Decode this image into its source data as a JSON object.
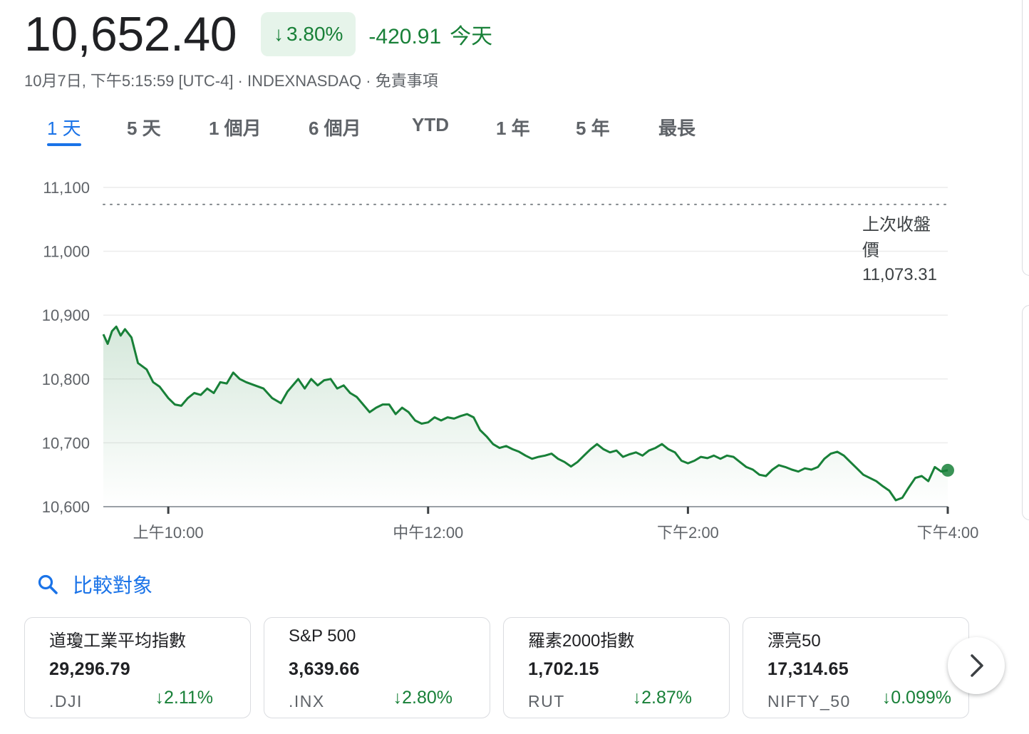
{
  "quote": {
    "price": "10,652.40",
    "change_arrow": "↓",
    "change_pct": "3.80%",
    "change_abs": "-420.91",
    "change_period": "今天",
    "meta": "10月7日, 下午5:15:59 [UTC-4] · INDEXNASDAQ · 免責事項",
    "accent_color": "#188038",
    "badge_bg": "#e6f4ea"
  },
  "tabs": [
    {
      "label": "1 天",
      "active": true
    },
    {
      "label": "5 天"
    },
    {
      "label": "1 個月"
    },
    {
      "label": "6 個月"
    },
    {
      "label": "YTD"
    },
    {
      "label": "1 年"
    },
    {
      "label": "5 年"
    },
    {
      "label": "最長"
    }
  ],
  "chart_data": {
    "type": "area",
    "ylim": [
      10600,
      11100
    ],
    "yticks": [
      "11,100",
      "11,000",
      "10,900",
      "10,800",
      "10,700",
      "10,600"
    ],
    "xticks": [
      {
        "label": "上午10:00",
        "time": "10:00"
      },
      {
        "label": "中午12:00",
        "time": "12:00"
      },
      {
        "label": "下午2:00",
        "time": "14:00"
      },
      {
        "label": "下午4:00",
        "time": "16:00"
      }
    ],
    "x_range": [
      "09:30",
      "16:00"
    ],
    "previous_close": {
      "label_line1": "上次收盤",
      "label_line2": "價",
      "value": "11,073.31",
      "y": 11073.31
    },
    "series": [
      {
        "color": "#188038",
        "points": [
          [
            "09:30",
            10870
          ],
          [
            "09:32",
            10855
          ],
          [
            "09:34",
            10875
          ],
          [
            "09:36",
            10882
          ],
          [
            "09:38",
            10868
          ],
          [
            "09:40",
            10878
          ],
          [
            "09:43",
            10865
          ],
          [
            "09:46",
            10825
          ],
          [
            "09:50",
            10815
          ],
          [
            "09:53",
            10795
          ],
          [
            "09:56",
            10788
          ],
          [
            "10:00",
            10770
          ],
          [
            "10:03",
            10760
          ],
          [
            "10:06",
            10758
          ],
          [
            "10:09",
            10770
          ],
          [
            "10:12",
            10778
          ],
          [
            "10:15",
            10775
          ],
          [
            "10:18",
            10785
          ],
          [
            "10:21",
            10778
          ],
          [
            "10:24",
            10795
          ],
          [
            "10:27",
            10793
          ],
          [
            "10:30",
            10810
          ],
          [
            "10:33",
            10800
          ],
          [
            "10:36",
            10795
          ],
          [
            "10:40",
            10790
          ],
          [
            "10:44",
            10785
          ],
          [
            "10:48",
            10770
          ],
          [
            "10:52",
            10762
          ],
          [
            "10:55",
            10780
          ],
          [
            "10:58",
            10792
          ],
          [
            "11:00",
            10800
          ],
          [
            "11:03",
            10785
          ],
          [
            "11:06",
            10800
          ],
          [
            "11:09",
            10790
          ],
          [
            "11:12",
            10798
          ],
          [
            "11:15",
            10800
          ],
          [
            "11:18",
            10785
          ],
          [
            "11:21",
            10790
          ],
          [
            "11:24",
            10778
          ],
          [
            "11:27",
            10772
          ],
          [
            "11:30",
            10760
          ],
          [
            "11:33",
            10748
          ],
          [
            "11:36",
            10755
          ],
          [
            "11:39",
            10760
          ],
          [
            "11:42",
            10760
          ],
          [
            "11:45",
            10745
          ],
          [
            "11:48",
            10755
          ],
          [
            "11:51",
            10748
          ],
          [
            "11:54",
            10735
          ],
          [
            "11:57",
            10730
          ],
          [
            "12:00",
            10732
          ],
          [
            "12:03",
            10740
          ],
          [
            "12:06",
            10735
          ],
          [
            "12:09",
            10740
          ],
          [
            "12:12",
            10738
          ],
          [
            "12:15",
            10742
          ],
          [
            "12:18",
            10745
          ],
          [
            "12:21",
            10740
          ],
          [
            "12:24",
            10720
          ],
          [
            "12:27",
            10710
          ],
          [
            "12:30",
            10698
          ],
          [
            "12:33",
            10692
          ],
          [
            "12:36",
            10695
          ],
          [
            "12:39",
            10690
          ],
          [
            "12:42",
            10686
          ],
          [
            "12:45",
            10680
          ],
          [
            "12:48",
            10675
          ],
          [
            "12:51",
            10678
          ],
          [
            "12:54",
            10680
          ],
          [
            "12:57",
            10683
          ],
          [
            "13:00",
            10675
          ],
          [
            "13:03",
            10670
          ],
          [
            "13:06",
            10663
          ],
          [
            "13:09",
            10670
          ],
          [
            "13:12",
            10680
          ],
          [
            "13:15",
            10690
          ],
          [
            "13:18",
            10698
          ],
          [
            "13:21",
            10690
          ],
          [
            "13:24",
            10685
          ],
          [
            "13:27",
            10688
          ],
          [
            "13:30",
            10678
          ],
          [
            "13:33",
            10682
          ],
          [
            "13:36",
            10685
          ],
          [
            "13:39",
            10680
          ],
          [
            "13:42",
            10688
          ],
          [
            "13:45",
            10692
          ],
          [
            "13:48",
            10698
          ],
          [
            "13:51",
            10690
          ],
          [
            "13:54",
            10685
          ],
          [
            "13:57",
            10672
          ],
          [
            "14:00",
            10668
          ],
          [
            "14:03",
            10672
          ],
          [
            "14:06",
            10678
          ],
          [
            "14:09",
            10676
          ],
          [
            "14:12",
            10680
          ],
          [
            "14:15",
            10675
          ],
          [
            "14:18",
            10680
          ],
          [
            "14:21",
            10678
          ],
          [
            "14:24",
            10670
          ],
          [
            "14:27",
            10662
          ],
          [
            "14:30",
            10658
          ],
          [
            "14:33",
            10650
          ],
          [
            "14:36",
            10648
          ],
          [
            "14:39",
            10658
          ],
          [
            "14:42",
            10665
          ],
          [
            "14:45",
            10662
          ],
          [
            "14:48",
            10658
          ],
          [
            "14:51",
            10655
          ],
          [
            "14:54",
            10660
          ],
          [
            "14:57",
            10658
          ],
          [
            "15:00",
            10662
          ],
          [
            "15:03",
            10675
          ],
          [
            "15:06",
            10683
          ],
          [
            "15:09",
            10686
          ],
          [
            "15:12",
            10680
          ],
          [
            "15:15",
            10670
          ],
          [
            "15:18",
            10660
          ],
          [
            "15:21",
            10650
          ],
          [
            "15:24",
            10645
          ],
          [
            "15:27",
            10640
          ],
          [
            "15:30",
            10632
          ],
          [
            "15:33",
            10625
          ],
          [
            "15:36",
            10610
          ],
          [
            "15:39",
            10614
          ],
          [
            "15:42",
            10630
          ],
          [
            "15:45",
            10645
          ],
          [
            "15:48",
            10648
          ],
          [
            "15:51",
            10640
          ],
          [
            "15:54",
            10662
          ],
          [
            "15:57",
            10655
          ],
          [
            "16:00",
            10657
          ]
        ]
      }
    ]
  },
  "compare": {
    "label": "比較對象"
  },
  "cards": [
    {
      "name": "道瓊工業平均指數",
      "value": "29,296.79",
      "symbol": ".DJI",
      "arrow": "↓",
      "pct": "2.11%"
    },
    {
      "name": "S&P 500",
      "value": "3,639.66",
      "symbol": ".INX",
      "arrow": "↓",
      "pct": "2.80%"
    },
    {
      "name": "羅素2000指數",
      "value": "1,702.15",
      "symbol": "RUT",
      "arrow": "↓",
      "pct": "2.87%"
    },
    {
      "name": "漂亮50",
      "value": "17,314.65",
      "symbol": "NIFTY_50",
      "arrow": "↓",
      "pct": "0.099%"
    }
  ]
}
